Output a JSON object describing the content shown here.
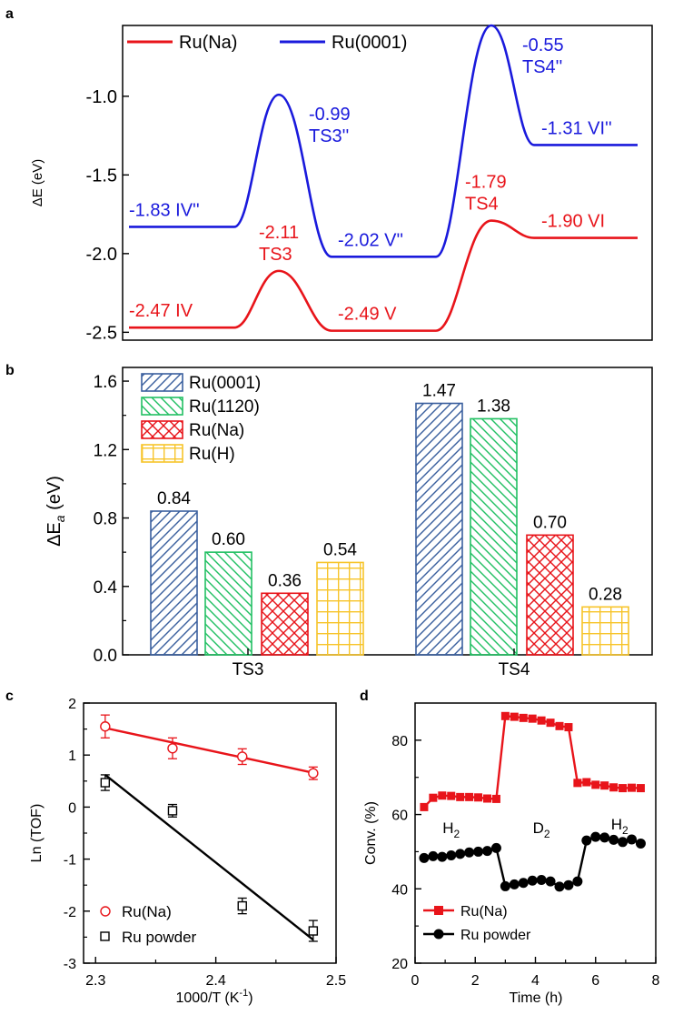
{
  "panel_letters": {
    "a": "a",
    "b": "b",
    "c": "c",
    "d": "d"
  },
  "colors": {
    "ru_na": "#e8141a",
    "ru0001": "#1a1adc",
    "ru1120": "#22c063",
    "ru_h": "#f7c42a",
    "hatch_0001": "#3a5f9e",
    "black": "#000000"
  },
  "chart_data": [
    {
      "id": "a",
      "type": "line",
      "ylabel": "ΔE (eV)",
      "ylim": [
        -2.55,
        -0.55
      ],
      "yticks": [
        -1.0,
        -1.5,
        -2.0,
        -2.5
      ],
      "ytick_labels": [
        "-1.0",
        "-1.5",
        "-2.0",
        "-2.5"
      ],
      "legend": [
        "Ru(Na)",
        "Ru(0001)"
      ],
      "series": [
        {
          "name": "Ru(Na)",
          "states": [
            {
              "value": -2.47,
              "label": "-2.47 IV",
              "type": "min"
            },
            {
              "value": -2.11,
              "label": "-2.11",
              "sublabel": "TS3",
              "type": "ts"
            },
            {
              "value": -2.49,
              "label": "-2.49 V",
              "type": "min"
            },
            {
              "value": -1.79,
              "label": "-1.79",
              "sublabel": "TS4",
              "type": "ts"
            },
            {
              "value": -1.9,
              "label": "-1.90 VI",
              "type": "min"
            }
          ]
        },
        {
          "name": "Ru(0001)",
          "states": [
            {
              "value": -1.83,
              "label": "-1.83 IV''",
              "type": "min"
            },
            {
              "value": -0.99,
              "label": "-0.99",
              "sublabel": "TS3''",
              "type": "ts"
            },
            {
              "value": -2.02,
              "label": "-2.02 V''",
              "type": "min"
            },
            {
              "value": -0.55,
              "label": "-0.55",
              "sublabel": "TS4''",
              "type": "ts"
            },
            {
              "value": -1.31,
              "label": "-1.31 VI''",
              "type": "min"
            }
          ]
        }
      ]
    },
    {
      "id": "b",
      "type": "bar",
      "ylabel": "ΔEa (eV)",
      "ylabel_main": "ΔE",
      "ylabel_sub": "a",
      "ylabel_unit": " (eV)",
      "ylim": [
        0,
        1.68
      ],
      "yticks": [
        0.0,
        0.4,
        0.8,
        1.2,
        1.6
      ],
      "ytick_labels": [
        "0.0",
        "0.4",
        "0.8",
        "1.2",
        "1.6"
      ],
      "categories": [
        "TS3",
        "TS4"
      ],
      "series": [
        {
          "name": "Ru(0001)",
          "values": [
            0.84,
            1.47
          ],
          "labels": [
            "0.84",
            "1.47"
          ]
        },
        {
          "name": "Ru(1120)",
          "values": [
            0.6,
            1.38
          ],
          "labels": [
            "0.60",
            "1.38"
          ]
        },
        {
          "name": "Ru(Na)",
          "values": [
            0.36,
            0.7
          ],
          "labels": [
            "0.36",
            "0.70"
          ]
        },
        {
          "name": "Ru(H)",
          "values": [
            0.54,
            0.28
          ],
          "labels": [
            "0.54",
            "0.28"
          ]
        }
      ]
    },
    {
      "id": "c",
      "type": "scatter",
      "xlabel": "1000/T (K",
      "xlabel_sup": "-1",
      "xlabel_end": ")",
      "ylabel": "Ln (TOF)",
      "xlim": [
        2.29,
        2.5
      ],
      "ylim": [
        -3,
        2
      ],
      "xticks": [
        2.3,
        2.4,
        2.5
      ],
      "xtick_labels": [
        "2.3",
        "2.4",
        "2.5"
      ],
      "yticks": [
        -3,
        -2,
        -1,
        0,
        1,
        2
      ],
      "ytick_labels": [
        "-3",
        "-2",
        "-1",
        "0",
        "1",
        "2"
      ],
      "series": [
        {
          "name": "Ru(Na)",
          "x": [
            2.308,
            2.364,
            2.422,
            2.481
          ],
          "y": [
            1.55,
            1.13,
            0.97,
            0.65
          ],
          "err": [
            0.22,
            0.2,
            0.15,
            0.12
          ],
          "fit": [
            [
              2.308,
              1.52
            ],
            [
              2.481,
              0.66
            ]
          ]
        },
        {
          "name": "Ru powder",
          "x": [
            2.308,
            2.364,
            2.422,
            2.481
          ],
          "y": [
            0.47,
            -0.07,
            -1.9,
            -2.38
          ],
          "err": [
            0.15,
            0.12,
            0.15,
            0.2
          ],
          "fit": [
            [
              2.308,
              0.62
            ],
            [
              2.481,
              -2.55
            ]
          ]
        }
      ]
    },
    {
      "id": "d",
      "type": "line",
      "xlabel": "Time (h)",
      "ylabel": "Conv. (%)",
      "xlim": [
        0,
        8
      ],
      "ylim": [
        20,
        90
      ],
      "xticks": [
        0,
        2,
        4,
        6,
        8
      ],
      "xtick_labels": [
        "0",
        "2",
        "4",
        "6",
        "8"
      ],
      "yticks": [
        20,
        40,
        60,
        80
      ],
      "ytick_labels": [
        "20",
        "40",
        "60",
        "80"
      ],
      "annotations": [
        {
          "main": "H",
          "sub": "2",
          "x": 1.2,
          "y": 55
        },
        {
          "main": "D",
          "sub": "2",
          "x": 4.2,
          "y": 55
        },
        {
          "main": "H",
          "sub": "2",
          "x": 6.8,
          "y": 56
        }
      ],
      "series": [
        {
          "name": "Ru(Na)",
          "x": [
            0.3,
            0.6,
            0.9,
            1.2,
            1.5,
            1.8,
            2.1,
            2.4,
            2.7,
            3.0,
            3.3,
            3.6,
            3.9,
            4.2,
            4.5,
            4.8,
            5.1,
            5.4,
            5.7,
            6.0,
            6.3,
            6.6,
            6.9,
            7.2,
            7.5
          ],
          "y": [
            62,
            64.5,
            65.1,
            65,
            64.7,
            64.7,
            64.6,
            64.3,
            64.2,
            86.5,
            86.3,
            86,
            85.8,
            85.3,
            84.7,
            83.8,
            83.5,
            68.5,
            68.7,
            68,
            67.8,
            67.3,
            67.1,
            67.2,
            67.1
          ]
        },
        {
          "name": "Ru powder",
          "x": [
            0.3,
            0.6,
            0.9,
            1.2,
            1.5,
            1.8,
            2.1,
            2.4,
            2.7,
            3.0,
            3.3,
            3.6,
            3.9,
            4.2,
            4.5,
            4.8,
            5.1,
            5.4,
            5.7,
            6.0,
            6.3,
            6.6,
            6.9,
            7.2,
            7.5
          ],
          "y": [
            48.3,
            48.8,
            48.6,
            49,
            49.4,
            49.8,
            50,
            50.2,
            51,
            40.7,
            41.2,
            41.6,
            42.2,
            42.4,
            42,
            40.6,
            41,
            42,
            53,
            54,
            53.8,
            53.2,
            52.6,
            53.3,
            52.2
          ]
        }
      ]
    }
  ]
}
